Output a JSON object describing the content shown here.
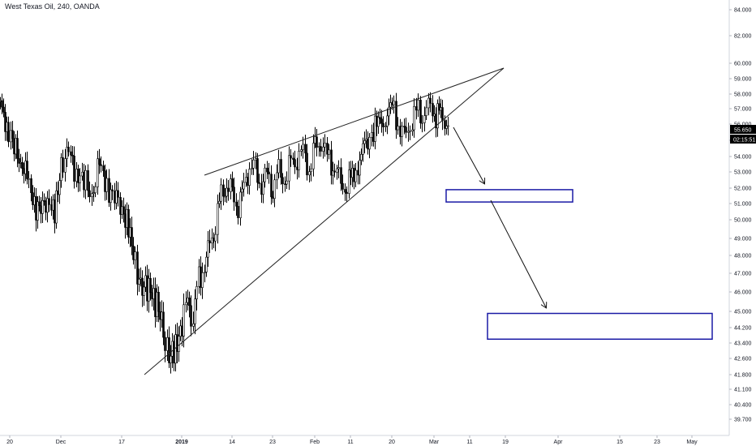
{
  "legend": "West Texas Oil, 240, OANDA",
  "chart_data": {
    "type": "candlestick",
    "symbol": "West Texas Oil",
    "interval": "240",
    "source": "OANDA",
    "y_ticks": [
      "84.000",
      "82.000",
      "60.000",
      "59.000",
      "58.000",
      "57.000",
      "56.000",
      "55.000",
      "54.000",
      "53.000",
      "52.000",
      "51.000",
      "50.000",
      "49.000",
      "48.000",
      "47.000",
      "46.000",
      "45.000",
      "44.200",
      "43.400",
      "42.600",
      "41.800",
      "41.100",
      "40.400",
      "39.700"
    ],
    "x_ticks": [
      {
        "label": "20",
        "bold": false
      },
      {
        "label": "Dec",
        "bold": false
      },
      {
        "label": "17",
        "bold": false
      },
      {
        "label": "2019",
        "bold": true
      },
      {
        "label": "14",
        "bold": false
      },
      {
        "label": "23",
        "bold": false
      },
      {
        "label": "Feb",
        "bold": false
      },
      {
        "label": "11",
        "bold": false
      },
      {
        "label": "20",
        "bold": false
      },
      {
        "label": "Mar",
        "bold": false
      },
      {
        "label": "11",
        "bold": false
      },
      {
        "label": "19",
        "bold": false
      },
      {
        "label": "Apr",
        "bold": false
      },
      {
        "label": "15",
        "bold": false
      },
      {
        "label": "23",
        "bold": false
      },
      {
        "label": "May",
        "bold": false
      }
    ],
    "last_price": "55.650",
    "countdown": "02:15:51",
    "price_path": [
      [
        "20",
        57.2
      ],
      [
        "20",
        56.0
      ],
      [
        "20",
        54.5
      ],
      [
        "20",
        53.8
      ],
      [
        "20",
        52.5
      ],
      [
        "20",
        51.0
      ],
      [
        "20",
        50.5
      ],
      [
        "20",
        51.5
      ],
      [
        "20",
        50.2
      ],
      [
        "Dec",
        53.5
      ],
      [
        "Dec",
        54.2
      ],
      [
        "Dec",
        53.0
      ],
      [
        "Dec",
        52.5
      ],
      [
        "Dec",
        51.5
      ],
      [
        "Dec",
        53.5
      ],
      [
        "Dec",
        52.0
      ],
      [
        "Dec",
        51.5
      ],
      [
        "17",
        50.8
      ],
      [
        "17",
        49.5
      ],
      [
        "17",
        47.5
      ],
      [
        "17",
        46.0
      ],
      [
        "17",
        46.5
      ],
      [
        "17",
        45.5
      ],
      [
        "17",
        44.5
      ],
      [
        "17",
        42.5
      ],
      [
        "17",
        43.2
      ],
      [
        "2019",
        44.5
      ],
      [
        "2019",
        45.5
      ],
      [
        "2019",
        44.8
      ],
      [
        "2019",
        46.5
      ],
      [
        "2019",
        47.5
      ],
      [
        "2019",
        48.5
      ],
      [
        "2019",
        50.0
      ],
      [
        "2019",
        51.5
      ],
      [
        "2019",
        52.2
      ],
      [
        "14",
        51.5
      ],
      [
        "14",
        51.0
      ],
      [
        "14",
        52.0
      ],
      [
        "14",
        53.5
      ],
      [
        "14",
        53.0
      ],
      [
        "14",
        52.2
      ],
      [
        "14",
        52.8
      ],
      [
        "23",
        52.0
      ],
      [
        "23",
        53.0
      ],
      [
        "23",
        52.5
      ],
      [
        "23",
        53.5
      ],
      [
        "23",
        54.0
      ],
      [
        "23",
        54.3
      ],
      [
        "23",
        53.2
      ],
      [
        "Feb",
        54.5
      ],
      [
        "Feb",
        55.0
      ],
      [
        "Feb",
        54.0
      ],
      [
        "Feb",
        53.5
      ],
      [
        "Feb",
        52.5
      ],
      [
        "Feb",
        52.0
      ],
      [
        "11",
        52.5
      ],
      [
        "11",
        53.5
      ],
      [
        "11",
        54.5
      ],
      [
        "11",
        55.5
      ],
      [
        "11",
        56.0
      ],
      [
        "11",
        56.5
      ],
      [
        "20",
        57.2
      ],
      [
        "20",
        56.0
      ],
      [
        "20",
        55.2
      ],
      [
        "20",
        55.8
      ],
      [
        "20",
        57.0
      ],
      [
        "20",
        56.5
      ],
      [
        "20",
        57.3
      ],
      [
        "Mar",
        56.5
      ],
      [
        "Mar",
        56.8
      ],
      [
        "Mar",
        56.2
      ],
      [
        "Mar",
        55.8
      ]
    ],
    "trendlines": [
      {
        "name": "upper-trendline",
        "from": [
          "14",
          52.8
        ],
        "to": [
          "19",
          59.6
        ]
      },
      {
        "name": "lower-trendline",
        "from": [
          "17",
          41.8
        ],
        "to": [
          "19",
          59.6
        ]
      }
    ],
    "arrows": [
      {
        "name": "arrow-1",
        "from": [
          "Mar",
          55.8
        ],
        "to": [
          "11",
          52.2
        ]
      },
      {
        "name": "arrow-2",
        "from": [
          "11",
          51.0
        ],
        "to": [
          "Apr",
          45.0
        ]
      }
    ],
    "target_zones": [
      {
        "name": "target-zone-1",
        "x_from": [
          "Mar",
          0
        ],
        "x_to": [
          "Apr",
          0
        ],
        "y_top": 51.9,
        "y_bottom": 51.1
      },
      {
        "name": "target-zone-2",
        "x_from": [
          "19",
          0
        ],
        "x_to": [
          "May",
          0
        ],
        "y_top": 44.9,
        "y_bottom": 43.6
      }
    ],
    "colors": {
      "candle": "#000000",
      "trendline": "#222222",
      "zone": "#1a1aa6",
      "arrow": "#111111",
      "badge": "#000000",
      "axis_text": "#131722",
      "grid_line": "#e0e3eb"
    }
  }
}
